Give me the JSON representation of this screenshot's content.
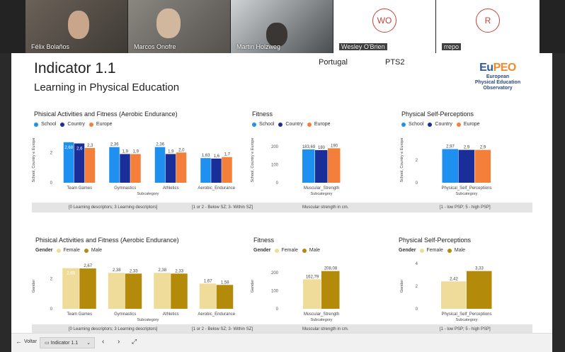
{
  "participants": [
    {
      "name": "Félix Bolaños",
      "avatar": ""
    },
    {
      "name": "Marcos Onofre",
      "avatar": ""
    },
    {
      "name": "Martin Holzweg",
      "avatar": ""
    },
    {
      "name": "Wesley O'Brien",
      "avatar": "WO"
    },
    {
      "name": "rrepo",
      "avatar": "R"
    }
  ],
  "report": {
    "title": "Indicator 1.1",
    "subtitle": "Learning in Physical Education",
    "country": "Portugal",
    "school": "PTS2",
    "logo": {
      "mark_a": "Eu",
      "mark_b": "PEO",
      "line1": "European",
      "line2": "Physical Education",
      "line3": "Observatory"
    }
  },
  "colors": {
    "school": "#1e90f0",
    "country": "#1a2e9a",
    "europe": "#f37f3b",
    "female": "#f0dc9a",
    "male": "#b38a0a"
  },
  "legends": {
    "top": {
      "school": "School",
      "country": "Country",
      "europe": "Europe"
    },
    "bottom": {
      "gender": "Gender",
      "female": "Female",
      "male": "Male"
    }
  },
  "info_top": {
    "left_a": "[0 Learning descriptors; 3 Learning descriptors]",
    "left_b": "[1 or 2 - Below SZ; 3- Within SZ]",
    "mid": "Muscular strength in cm.",
    "right": "[1 - low PSP; 5 - high PSP]"
  },
  "info_bottom": {
    "left_a": "[0 Learning descriptors; 3 Learning descriptors]",
    "left_b": "[1 or 2 - Below SZ; 3- Within SZ]",
    "mid": "Muscular strength in cm.",
    "right": "[1 - low PSP; 5 - high PSP]"
  },
  "chart_data": [
    {
      "type": "bar",
      "title": "Phisical Activities and Fitness (Aerobic Endurance)",
      "xlabel": "Subcategory",
      "ylabel": "School, Country e Europe",
      "ylim": [
        0,
        3
      ],
      "yticks": [
        "0",
        "2"
      ],
      "categories": [
        "Team Games",
        "Gymnastics",
        "Athletics",
        "Aerobic_Endurance"
      ],
      "series": [
        {
          "name": "School",
          "values": [
            2.68,
            2.36,
            2.36,
            1.63
          ],
          "labels": [
            "2,68",
            "2,36",
            "2,36",
            "1,63"
          ]
        },
        {
          "name": "Country",
          "values": [
            2.6,
            1.9,
            1.9,
            1.6
          ],
          "labels": [
            "2,6",
            "1,9",
            "1,9",
            "1,6"
          ]
        },
        {
          "name": "Europe",
          "values": [
            2.3,
            1.9,
            2.0,
            1.7
          ],
          "labels": [
            "2,3",
            "1,9",
            "2,0",
            "1,7"
          ]
        }
      ]
    },
    {
      "type": "bar",
      "title": "Fitness",
      "xlabel": "Subcategory",
      "ylabel": "School, Country e Europe",
      "ylim": [
        0,
        250
      ],
      "yticks": [
        "0",
        "100",
        "200"
      ],
      "categories": [
        "Muscular_Strength"
      ],
      "series": [
        {
          "name": "School",
          "values": [
            183.69
          ],
          "labels": [
            "183,69"
          ]
        },
        {
          "name": "Country",
          "values": [
            180
          ],
          "labels": [
            "180"
          ]
        },
        {
          "name": "Europe",
          "values": [
            190
          ],
          "labels": [
            "190"
          ]
        }
      ]
    },
    {
      "type": "bar",
      "title": "Physical Self-Perceptions",
      "xlabel": "Subcategory",
      "ylabel": "School, Country e Europe",
      "ylim": [
        0,
        4
      ],
      "yticks": [
        "0",
        "2"
      ],
      "categories": [
        "Physical_Self_Perceptions"
      ],
      "series": [
        {
          "name": "School",
          "values": [
            2.97
          ],
          "labels": [
            "2,97"
          ]
        },
        {
          "name": "Country",
          "values": [
            2.9
          ],
          "labels": [
            "2,9"
          ]
        },
        {
          "name": "Europe",
          "values": [
            2.9
          ],
          "labels": [
            "2,9"
          ]
        }
      ]
    },
    {
      "type": "bar",
      "title": "Phisical Activities and Fitness (Aerobic Endurance)",
      "xlabel": "Subcategory",
      "ylabel": "Gender",
      "ylim": [
        0,
        3
      ],
      "yticks": [
        "0",
        "2"
      ],
      "categories": [
        "Team Games",
        "Gymnastics",
        "Athletics",
        "Aerobic_Endurance"
      ],
      "series": [
        {
          "name": "Female",
          "values": [
            2.69,
            2.38,
            2.38,
            1.67
          ],
          "labels": [
            "2,69",
            "2,38",
            "2,38",
            "1,67"
          ]
        },
        {
          "name": "Male",
          "values": [
            2.67,
            2.33,
            2.33,
            1.58
          ],
          "labels": [
            "2,67",
            "2,33",
            "2,33",
            "1,58"
          ]
        }
      ]
    },
    {
      "type": "bar",
      "title": "Fitness",
      "xlabel": "Subcategory",
      "ylabel": "Gender",
      "ylim": [
        0,
        250
      ],
      "yticks": [
        "0",
        "100",
        "200"
      ],
      "categories": [
        "Muscular_Strength"
      ],
      "series": [
        {
          "name": "Female",
          "values": [
            162.79
          ],
          "labels": [
            "162,79"
          ]
        },
        {
          "name": "Male",
          "values": [
            208.08
          ],
          "labels": [
            "208,08"
          ]
        }
      ]
    },
    {
      "type": "bar",
      "title": "Physical Self-Perceptions",
      "xlabel": "Subcategory",
      "ylabel": "Gender",
      "ylim": [
        0,
        4
      ],
      "yticks": [
        "0",
        "2",
        "4"
      ],
      "categories": [
        "Physical_Self_Perceptions"
      ],
      "series": [
        {
          "name": "Female",
          "values": [
            2.42
          ],
          "labels": [
            "2,42"
          ]
        },
        {
          "name": "Male",
          "values": [
            3.33
          ],
          "labels": [
            "3,33"
          ]
        }
      ]
    }
  ],
  "taskbar": {
    "back_label": "Voltar",
    "page_label": "Indicator 1.1"
  }
}
